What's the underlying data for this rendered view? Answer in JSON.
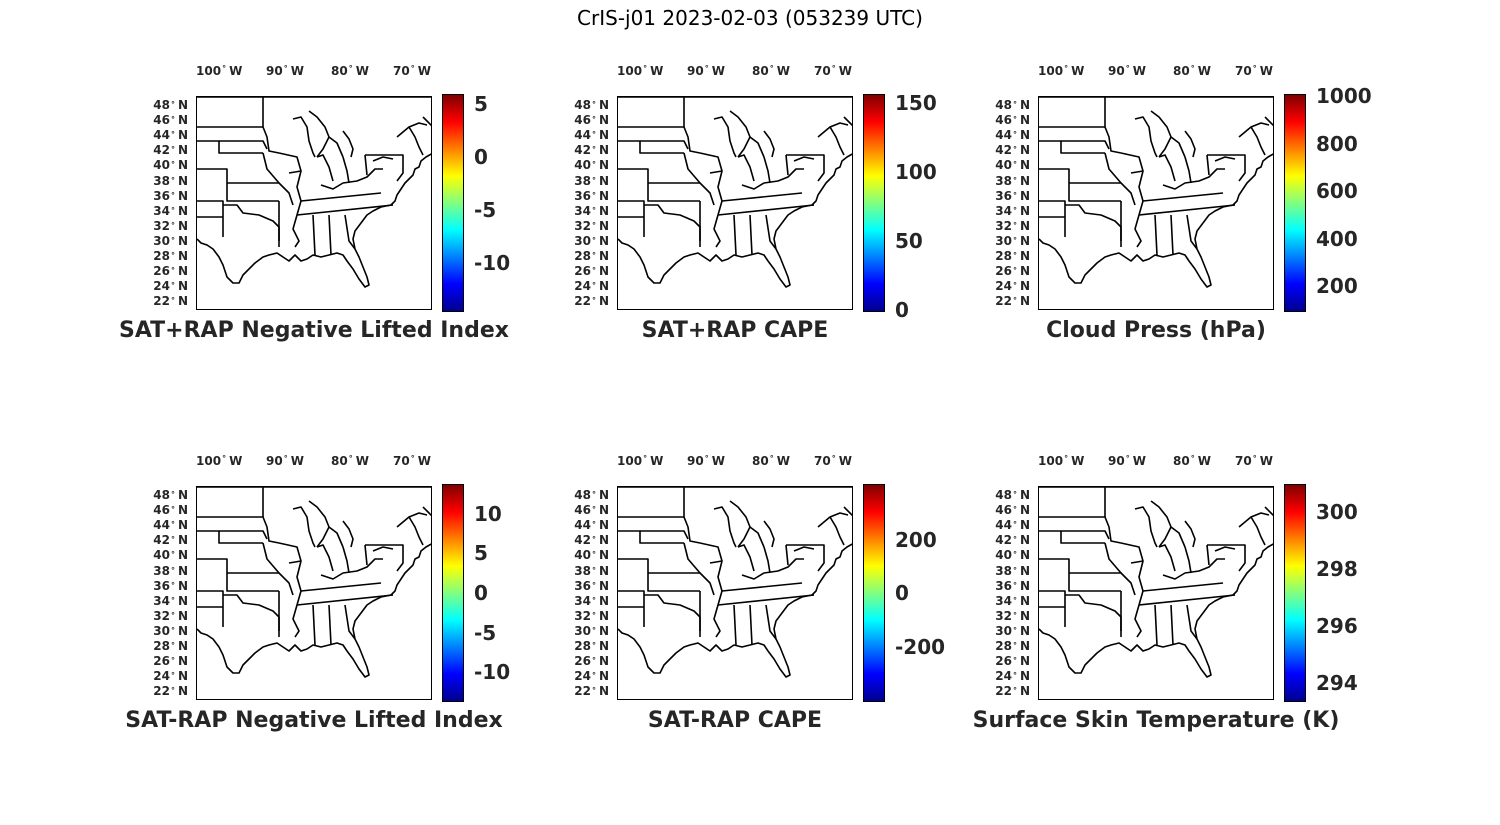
{
  "figure_title": "CrIS-j01 2023-02-03 (053239 UTC)",
  "lon_labels": [
    "100",
    "90",
    "80",
    "70"
  ],
  "lon_suffix": "W",
  "lat_labels": [
    "48",
    "46",
    "44",
    "42",
    "40",
    "38",
    "36",
    "34",
    "32",
    "30",
    "28",
    "26",
    "24",
    "22"
  ],
  "lat_suffix": "N",
  "colormap": "jet",
  "panels": [
    {
      "title": "SAT+RAP Negative Lifted Index",
      "cbar_ticks": [
        {
          "label": "5",
          "value": 5
        },
        {
          "label": "0",
          "value": 0
        },
        {
          "label": "-5",
          "value": -5
        },
        {
          "label": "-10",
          "value": -10
        }
      ],
      "cbar_range": [
        -14.5,
        5.8
      ]
    },
    {
      "title": "SAT+RAP CAPE",
      "cbar_ticks": [
        {
          "label": "150",
          "value": 150
        },
        {
          "label": "100",
          "value": 100
        },
        {
          "label": "50",
          "value": 50
        },
        {
          "label": "0",
          "value": 0
        }
      ],
      "cbar_range": [
        0,
        155
      ]
    },
    {
      "title": "Cloud Press (hPa)",
      "cbar_ticks": [
        {
          "label": "1000",
          "value": 1000
        },
        {
          "label": "800",
          "value": 800
        },
        {
          "label": "600",
          "value": 600
        },
        {
          "label": "400",
          "value": 400
        },
        {
          "label": "200",
          "value": 200
        }
      ],
      "cbar_range": [
        100,
        1000
      ]
    },
    {
      "title": "SAT-RAP Negative Lifted Index",
      "cbar_ticks": [
        {
          "label": "10",
          "value": 10
        },
        {
          "label": "5",
          "value": 5
        },
        {
          "label": "0",
          "value": 0
        },
        {
          "label": "-5",
          "value": -5
        },
        {
          "label": "-10",
          "value": -10
        }
      ],
      "cbar_range": [
        -13.5,
        13.5
      ]
    },
    {
      "title": "SAT-RAP CAPE",
      "cbar_ticks": [
        {
          "label": "200",
          "value": 200
        },
        {
          "label": "0",
          "value": 0
        },
        {
          "label": "-200",
          "value": -200
        }
      ],
      "cbar_range": [
        -400,
        400
      ]
    },
    {
      "title": "Surface Skin Temperature (K)",
      "cbar_ticks": [
        {
          "label": "300",
          "value": 300
        },
        {
          "label": "298",
          "value": 298
        },
        {
          "label": "296",
          "value": 296
        },
        {
          "label": "294",
          "value": 294
        }
      ],
      "cbar_range": [
        293.4,
        300.9
      ]
    }
  ]
}
